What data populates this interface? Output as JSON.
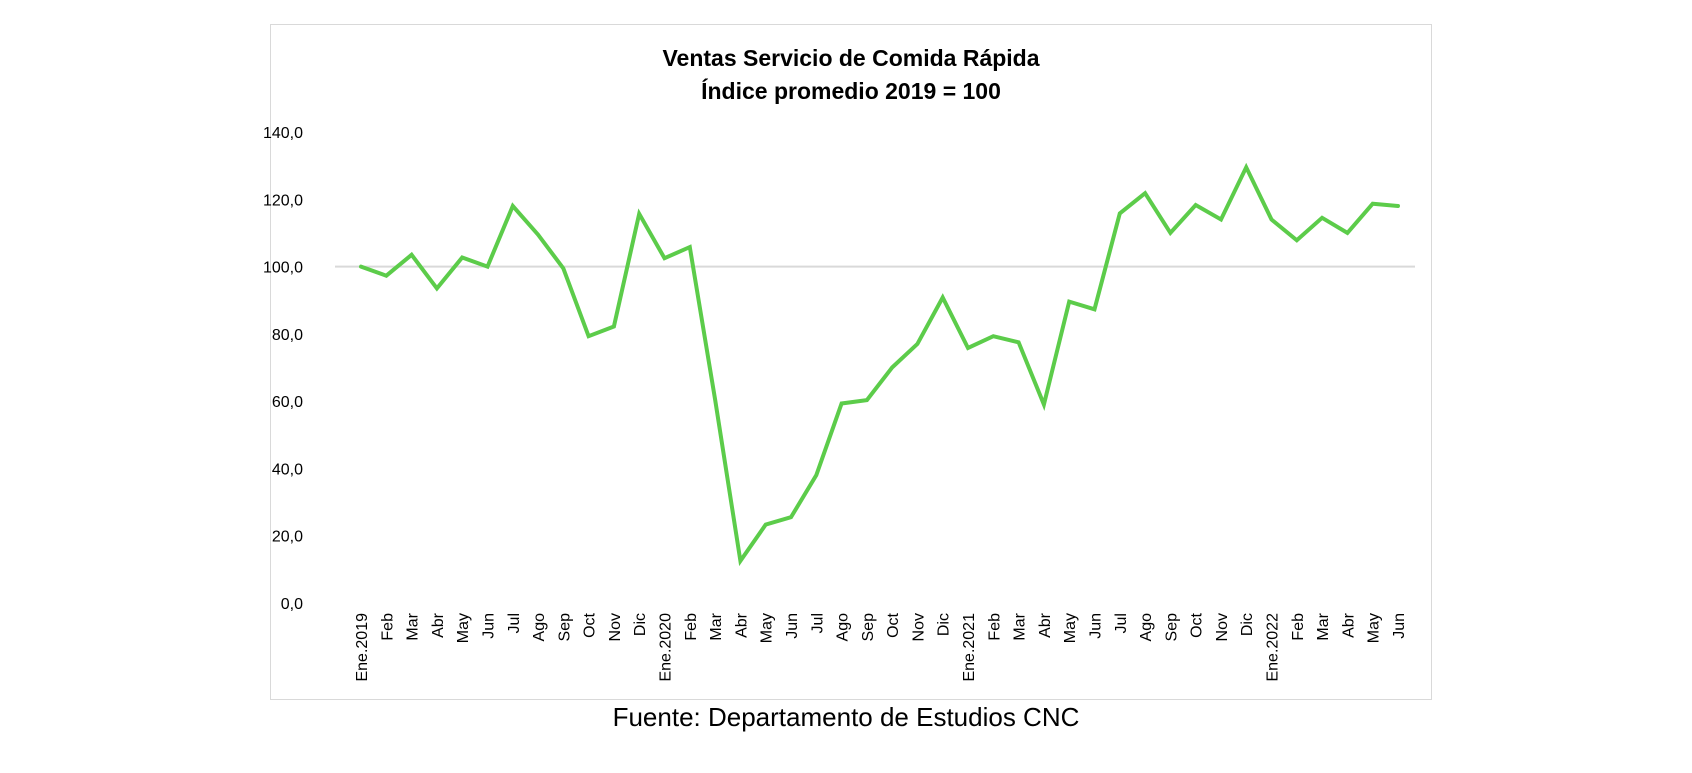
{
  "chart_data": {
    "type": "line",
    "title": "Ventas Servicio de Comida Rápida",
    "subtitle": "Índice promedio 2019 = 100",
    "xlabel": "",
    "ylabel": "",
    "ylim": [
      0,
      140
    ],
    "yticks": [
      "0,0",
      "20,0",
      "40,0",
      "60,0",
      "80,0",
      "100,0",
      "120,0",
      "140,0"
    ],
    "reference_line": 100,
    "grid": false,
    "line_color": "#5ccc4a",
    "reference_color": "#d9d9d9",
    "categories": [
      "Ene.2019",
      "Feb",
      "Mar",
      "Abr",
      "May",
      "Jun",
      "Jul",
      "Ago",
      "Sep",
      "Oct",
      "Nov",
      "Dic",
      "Ene.2020",
      "Feb",
      "Mar",
      "Abr",
      "May",
      "Jun",
      "Jul",
      "Ago",
      "Sep",
      "Oct",
      "Nov",
      "Dic",
      "Ene.2021",
      "Feb",
      "Mar",
      "Abr",
      "May",
      "Jun",
      "Jul",
      "Ago",
      "Sep",
      "Oct",
      "Nov",
      "Dic",
      "Ene.2022",
      "Feb",
      "Mar",
      "Abr",
      "May",
      "Jun"
    ],
    "series": [
      {
        "values": [
          100.0,
          97.3,
          103.5,
          93.5,
          102.7,
          100.0,
          118.0,
          109.5,
          99.5,
          79.3,
          82.2,
          115.7,
          102.5,
          105.8,
          60.5,
          12.5,
          23.3,
          25.5,
          38.0,
          59.3,
          60.3,
          70.0,
          77.0,
          90.8,
          75.8,
          79.3,
          77.5,
          59.0,
          89.6,
          87.3,
          115.8,
          121.8,
          110.0,
          118.3,
          114.0,
          129.5,
          114.0,
          107.8,
          114.5,
          110.0,
          118.7,
          118.0
        ]
      }
    ]
  },
  "source": "Fuente: Departamento de Estudios CNC"
}
